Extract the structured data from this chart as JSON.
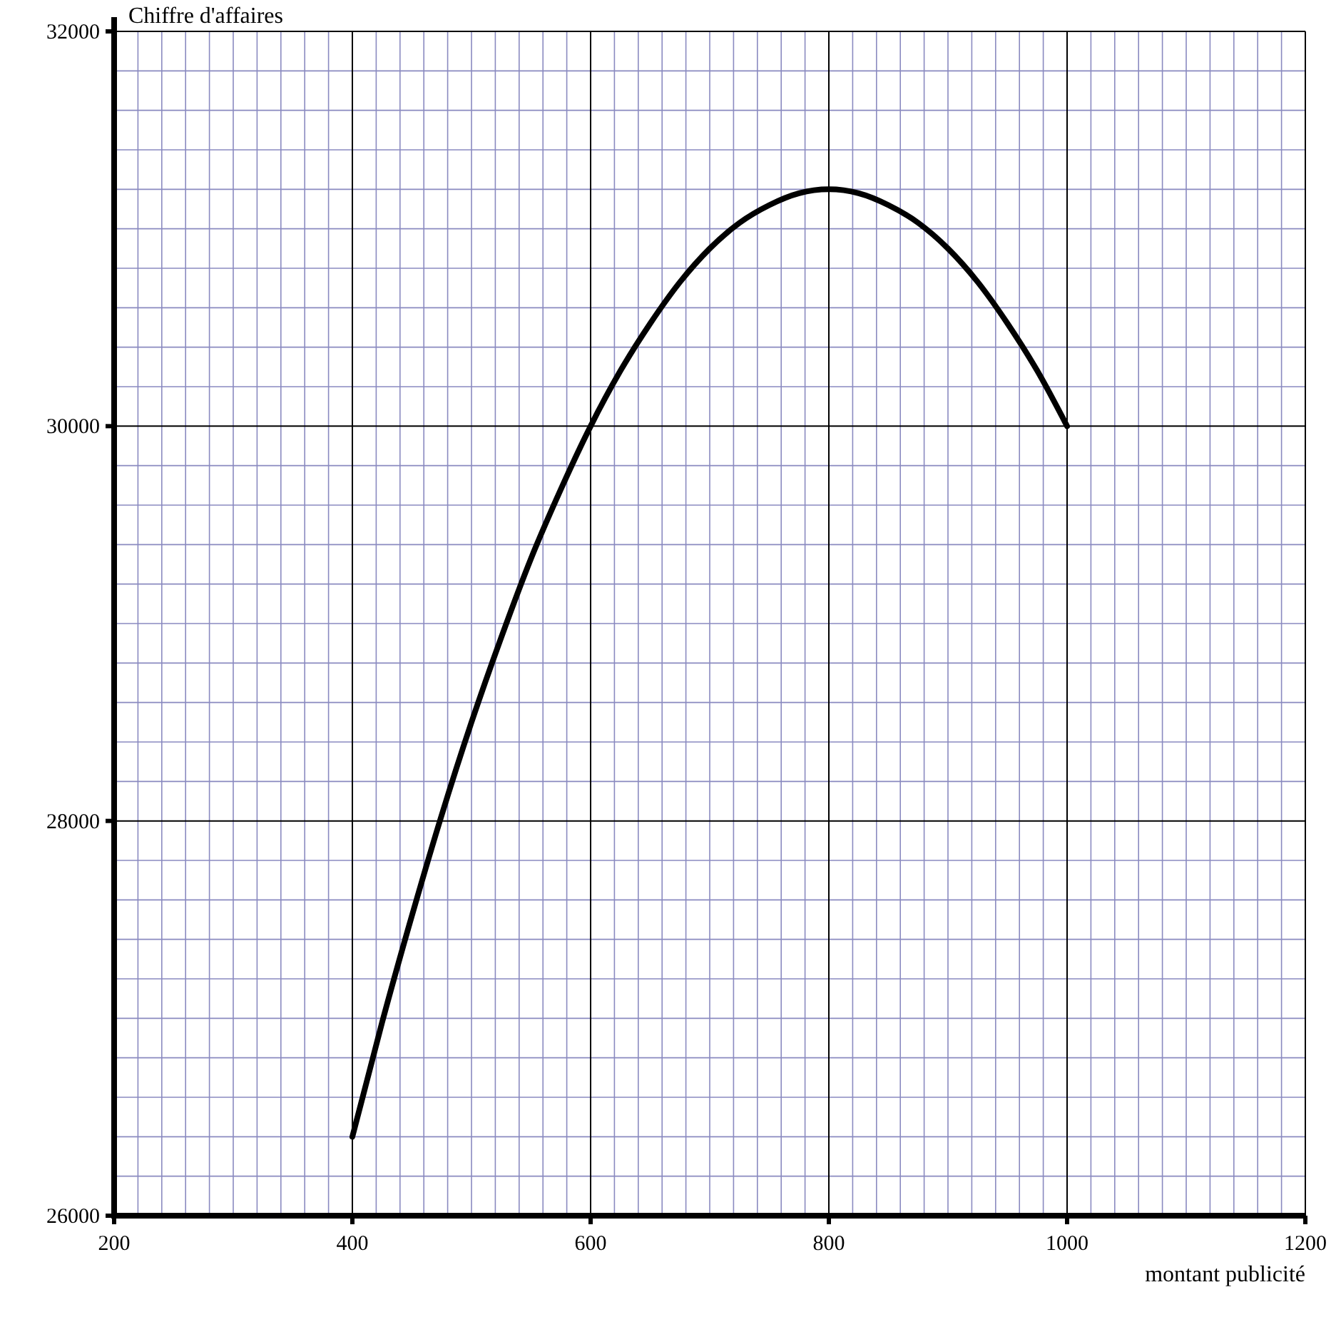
{
  "chart_data": {
    "type": "line",
    "xlabel": "montant publicité",
    "ylabel": "Chiffre d'affaires",
    "xlim": [
      200,
      1200
    ],
    "ylim": [
      26000,
      32000
    ],
    "xticks": [
      200,
      {
        "value": 220,
        "label": null
      },
      {
        "value": 240,
        "label": null
      },
      {
        "value": 260,
        "label": null
      },
      {
        "value": 280,
        "label": null
      },
      {
        "value": 300,
        "label": null
      },
      {
        "value": 320,
        "label": null
      },
      {
        "value": 340,
        "label": null
      },
      {
        "value": 360,
        "label": null
      },
      {
        "value": 380,
        "label": null
      },
      400,
      {
        "value": 420,
        "label": null
      },
      {
        "value": 440,
        "label": null
      },
      {
        "value": 460,
        "label": null
      },
      {
        "value": 480,
        "label": null
      },
      {
        "value": 500,
        "label": null
      },
      {
        "value": 520,
        "label": null
      },
      {
        "value": 540,
        "label": null
      },
      {
        "value": 560,
        "label": null
      },
      {
        "value": 580,
        "label": null
      },
      600,
      {
        "value": 620,
        "label": null
      },
      {
        "value": 640,
        "label": null
      },
      {
        "value": 660,
        "label": null
      },
      {
        "value": 680,
        "label": null
      },
      {
        "value": 700,
        "label": null
      },
      {
        "value": 720,
        "label": null
      },
      {
        "value": 740,
        "label": null
      },
      {
        "value": 760,
        "label": null
      },
      {
        "value": 780,
        "label": null
      },
      800,
      {
        "value": 820,
        "label": null
      },
      {
        "value": 840,
        "label": null
      },
      {
        "value": 860,
        "label": null
      },
      {
        "value": 880,
        "label": null
      },
      {
        "value": 900,
        "label": null
      },
      {
        "value": 920,
        "label": null
      },
      {
        "value": 940,
        "label": null
      },
      {
        "value": 960,
        "label": null
      },
      {
        "value": 980,
        "label": null
      },
      1000,
      {
        "value": 1020,
        "label": null
      },
      {
        "value": 1040,
        "label": null
      },
      {
        "value": 1060,
        "label": null
      },
      {
        "value": 1080,
        "label": null
      },
      {
        "value": 1100,
        "label": null
      },
      {
        "value": 1120,
        "label": null
      },
      {
        "value": 1140,
        "label": null
      },
      {
        "value": 1160,
        "label": null
      },
      {
        "value": 1180,
        "label": null
      },
      1200
    ],
    "yticks": [
      26000,
      {
        "value": 26200,
        "label": null
      },
      {
        "value": 26400,
        "label": null
      },
      {
        "value": 26600,
        "label": null
      },
      {
        "value": 26800,
        "label": null
      },
      {
        "value": 27000,
        "label": null
      },
      {
        "value": 27200,
        "label": null
      },
      {
        "value": 27400,
        "label": null
      },
      {
        "value": 27600,
        "label": null
      },
      {
        "value": 27800,
        "label": null
      },
      28000,
      {
        "value": 28200,
        "label": null
      },
      {
        "value": 28400,
        "label": null
      },
      {
        "value": 28600,
        "label": null
      },
      {
        "value": 28800,
        "label": null
      },
      {
        "value": 29000,
        "label": null
      },
      {
        "value": 29200,
        "label": null
      },
      {
        "value": 29400,
        "label": null
      },
      {
        "value": 29600,
        "label": null
      },
      {
        "value": 29800,
        "label": null
      },
      30000,
      {
        "value": 30200,
        "label": null
      },
      {
        "value": 30400,
        "label": null
      },
      {
        "value": 30600,
        "label": null
      },
      {
        "value": 30800,
        "label": null
      },
      {
        "value": 31000,
        "label": null
      },
      {
        "value": 31200,
        "label": null
      },
      {
        "value": 31400,
        "label": null
      },
      {
        "value": 31600,
        "label": null
      },
      {
        "value": 31800,
        "label": null
      },
      32000
    ],
    "grid": true,
    "marker": "none",
    "line_style": "solid",
    "series": [
      {
        "color": "#000000",
        "x": [
          400,
          425,
          450,
          475,
          500,
          525,
          550,
          575,
          600,
          625,
          650,
          675,
          700,
          725,
          750,
          775,
          800,
          825,
          850,
          875,
          900,
          925,
          950,
          975,
          1000
        ],
        "values": [
          26400,
          26980,
          27520,
          28030,
          28500,
          28930,
          29330,
          29680,
          30000,
          30280,
          30520,
          30730,
          30900,
          31030,
          31120,
          31180,
          31200,
          31180,
          31120,
          31030,
          30900,
          30730,
          30520,
          30280,
          30000
        ]
      }
    ]
  }
}
